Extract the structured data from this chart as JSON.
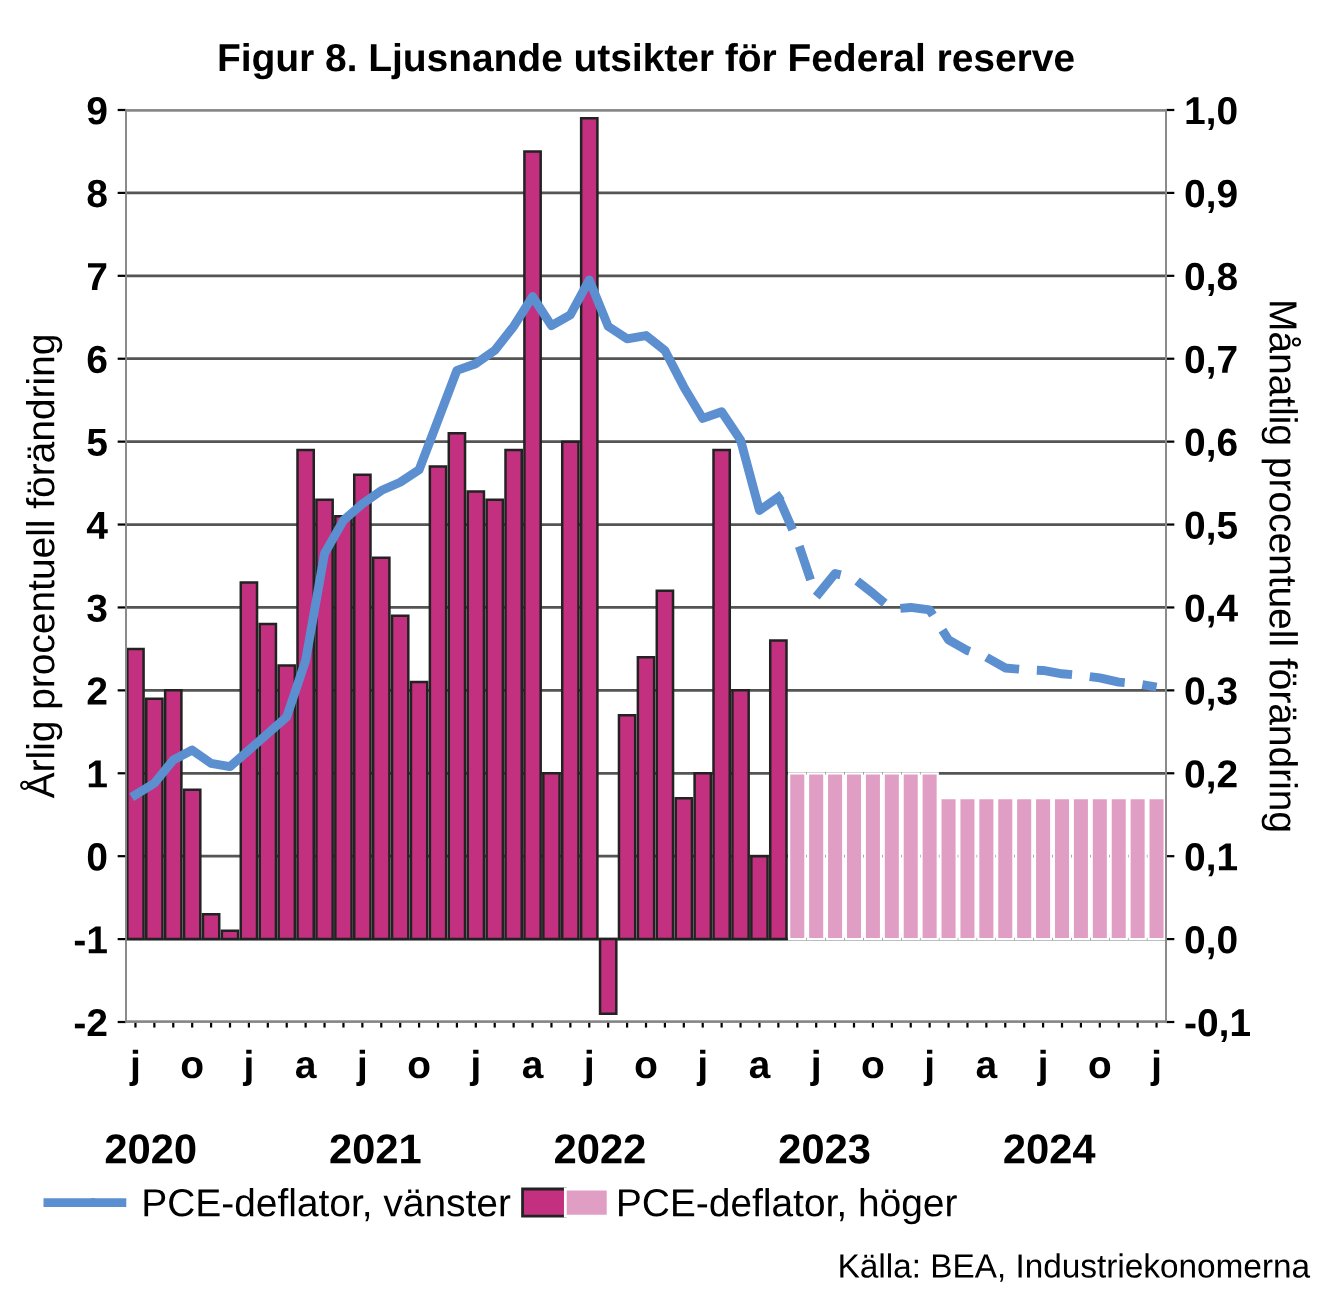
{
  "chart_data": {
    "type": "bar",
    "title": "Figur 8. Ljusnande utsikter för Federal reserve",
    "ylabel": "Årlig procentuell förändring",
    "y2label": "Månatlig procentuell förändring",
    "categories": [
      "j",
      null,
      null,
      "o",
      null,
      null,
      "j",
      null,
      null,
      "a",
      null,
      null,
      "j",
      null,
      null,
      "o",
      null,
      null,
      "j",
      null,
      null,
      "a",
      null,
      null,
      "j",
      null,
      null,
      "o",
      null,
      null,
      "j",
      null,
      null,
      "a",
      null,
      null,
      "j",
      null,
      null,
      "o",
      null,
      null,
      "j",
      null,
      null,
      "a",
      null,
      null,
      "j",
      null,
      null,
      "o",
      null,
      null,
      "j"
    ],
    "x2lim": [
      2019.89,
      2024.52
    ],
    "x2ticks": [
      2020,
      2021,
      2022,
      2023,
      2024
    ],
    "ylim": [
      -2,
      9
    ],
    "yticks": [
      -2,
      -1,
      0,
      1,
      2,
      3,
      4,
      5,
      6,
      7,
      8,
      9
    ],
    "y2lim": [
      -0.1,
      1.0
    ],
    "y2ticks": [
      {
        "value": -0.1,
        "label": "-0,1"
      },
      {
        "value": 0.0,
        "label": "0,0"
      },
      {
        "value": 0.1,
        "label": "0,1"
      },
      {
        "value": 0.2,
        "label": "0,2"
      },
      {
        "value": 0.3,
        "label": "0,3"
      },
      {
        "value": 0.4,
        "label": "0,4"
      },
      {
        "value": 0.5,
        "label": "0,5"
      },
      {
        "value": 0.6,
        "label": "0,6"
      },
      {
        "value": 0.7,
        "label": "0,7"
      },
      {
        "value": 0.8,
        "label": "0,8"
      },
      {
        "value": 0.9,
        "label": "0,9"
      },
      {
        "value": 1.0,
        "label": "1,0"
      }
    ],
    "grid": "y",
    "legend": "bottom left",
    "series": [
      {
        "name": "PCE-deflator, vänster",
        "type": "line",
        "color": "#5b8fd0",
        "line_style": "solid",
        "values": [
          0.74,
          0.88,
          1.16,
          1.28,
          1.12,
          1.08,
          1.28,
          1.48,
          1.68,
          2.36,
          3.65,
          4.05,
          4.25,
          4.41,
          4.51,
          4.66,
          5.26,
          5.86,
          5.94,
          6.1,
          6.39,
          6.75,
          6.4,
          6.53,
          6.95,
          6.39,
          6.24,
          6.28,
          6.1,
          5.66,
          5.28,
          5.36,
          5.02,
          4.17,
          4.33,
          null,
          null,
          null,
          null,
          null,
          null,
          null,
          null,
          null,
          null,
          null,
          null,
          null,
          null,
          null,
          null,
          null,
          null,
          null,
          null
        ]
      },
      {
        "type": "line",
        "color": "#5b8fd0",
        "line_style": "dashed",
        "values": [
          null,
          null,
          null,
          null,
          null,
          null,
          null,
          null,
          null,
          null,
          null,
          null,
          null,
          null,
          null,
          null,
          null,
          null,
          null,
          null,
          null,
          null,
          null,
          null,
          null,
          null,
          null,
          null,
          null,
          null,
          null,
          null,
          null,
          null,
          4.33,
          3.81,
          3.13,
          3.41,
          3.35,
          3.17,
          2.98,
          3.0,
          2.97,
          2.61,
          2.48,
          2.4,
          2.27,
          2.25,
          2.24,
          2.2,
          2.18,
          2.15,
          2.1,
          2.08,
          2.04
        ]
      },
      {
        "name": "PCE-deflator, höger",
        "axis": "y2",
        "color": "#c3307f",
        "colors": [
          "#c3307f",
          "#c3307f",
          "#c3307f",
          "#c3307f",
          "#c3307f",
          "#c3307f",
          "#c3307f",
          "#c3307f",
          "#c3307f",
          "#c3307f",
          "#c3307f",
          "#c3307f",
          "#c3307f",
          "#c3307f",
          "#c3307f",
          "#c3307f",
          "#c3307f",
          "#c3307f",
          "#c3307f",
          "#c3307f",
          "#c3307f",
          "#c3307f",
          "#c3307f",
          "#c3307f",
          "#c3307f",
          "#c3307f",
          "#c3307f",
          "#c3307f",
          "#c3307f",
          "#c3307f",
          "#c3307f",
          "#c3307f",
          "#c3307f",
          "#c3307f",
          "#c3307f",
          "#e09ec4",
          "#e09ec4",
          "#e09ec4",
          "#e09ec4",
          "#e09ec4",
          "#e09ec4",
          "#e09ec4",
          "#e09ec4",
          "#e09ec4",
          "#e09ec4",
          "#e09ec4",
          "#e09ec4",
          "#e09ec4",
          "#e09ec4",
          "#e09ec4",
          "#e09ec4",
          "#e09ec4",
          "#e09ec4",
          "#e09ec4",
          "#e09ec4"
        ],
        "values": [
          0.35,
          0.29,
          0.3,
          0.18,
          0.03,
          0.01,
          0.43,
          0.38,
          0.33,
          0.59,
          0.53,
          0.51,
          0.56,
          0.46,
          0.39,
          0.31,
          0.57,
          0.61,
          0.54,
          0.53,
          0.59,
          0.95,
          0.2,
          0.6,
          0.99,
          -0.09,
          0.27,
          0.34,
          0.42,
          0.17,
          0.2,
          0.59,
          0.3,
          0.1,
          0.36,
          0.2,
          0.2,
          0.2,
          0.2,
          0.2,
          0.2,
          0.2,
          0.2,
          0.17,
          0.17,
          0.17,
          0.17,
          0.17,
          0.17,
          0.17,
          0.17,
          0.17,
          0.17,
          0.17,
          0.17
        ]
      }
    ],
    "annotations": [
      "Källa: BEA, Industriekonomerna"
    ]
  }
}
